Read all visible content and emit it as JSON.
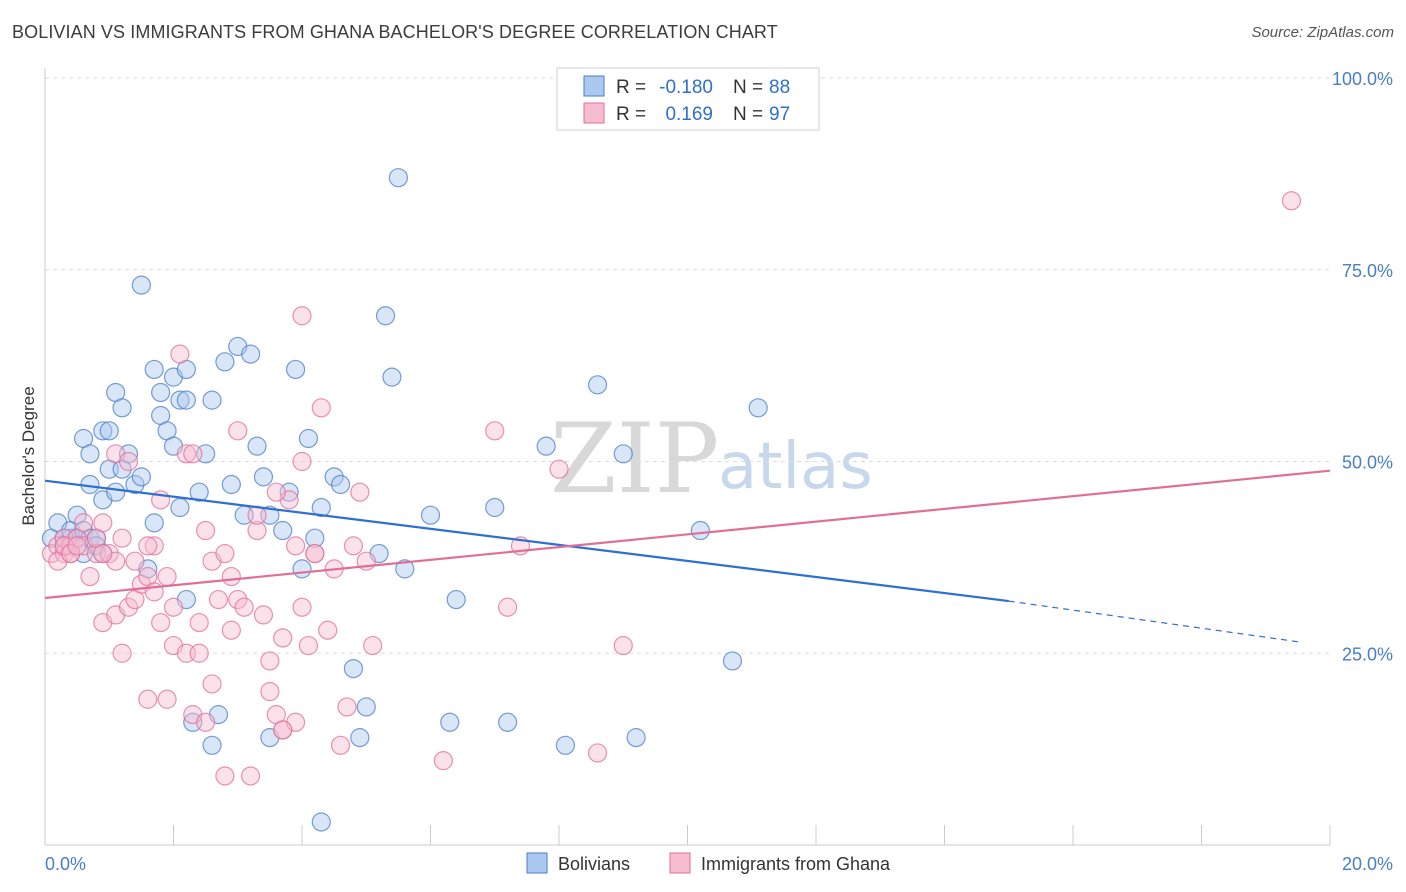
{
  "title": "BOLIVIAN VS IMMIGRANTS FROM GHANA BACHELOR'S DEGREE CORRELATION CHART",
  "source": "Source: ZipAtlas.com",
  "watermark": {
    "zip": "ZIP",
    "atlas": "atlas"
  },
  "legend": {
    "rows": [
      {
        "r_label": "R =",
        "r_value": "-0.180",
        "n_label": "N =",
        "n_value": "88",
        "color": "#4a7ec6"
      },
      {
        "r_label": "R =",
        "r_value": "0.169",
        "n_label": "N =",
        "n_value": "97",
        "color": "#e06f98"
      }
    ]
  },
  "chart_data": {
    "type": "scatter",
    "title": "BOLIVIAN VS IMMIGRANTS FROM GHANA BACHELOR'S DEGREE CORRELATION CHART",
    "xlabel": "",
    "ylabel": "Bachelor's Degree",
    "xlim": [
      0,
      20
    ],
    "ylim": [
      0,
      100
    ],
    "x_ticks": [
      "0.0%",
      "20.0%"
    ],
    "y_ticks": [
      "25.0%",
      "50.0%",
      "75.0%",
      "100.0%"
    ],
    "y_tick_values": [
      25,
      50,
      75,
      100
    ],
    "grid": true,
    "legend_position": "top-center",
    "series": [
      {
        "name": "Bolivians",
        "color": "#4a7ec6",
        "fill": "#aac8f0",
        "trend": {
          "x0": 0,
          "y0": 47.5,
          "x1": 15,
          "y1": 31.8,
          "dash_to_x": 19.5,
          "dash_to_y": 26.5
        },
        "points": [
          [
            0.1,
            40
          ],
          [
            0.2,
            42
          ],
          [
            0.3,
            40
          ],
          [
            0.3,
            39
          ],
          [
            0.4,
            40
          ],
          [
            0.4,
            41
          ],
          [
            0.5,
            40
          ],
          [
            0.5,
            43
          ],
          [
            0.6,
            41
          ],
          [
            0.6,
            38
          ],
          [
            0.7,
            40
          ],
          [
            0.6,
            53
          ],
          [
            0.7,
            51
          ],
          [
            0.7,
            47
          ],
          [
            0.8,
            40
          ],
          [
            0.8,
            39
          ],
          [
            0.9,
            38
          ],
          [
            0.9,
            54
          ],
          [
            1.0,
            54
          ],
          [
            0.9,
            45
          ],
          [
            1.0,
            49
          ],
          [
            1.1,
            59
          ],
          [
            1.2,
            57
          ],
          [
            1.1,
            46
          ],
          [
            1.2,
            49
          ],
          [
            1.3,
            51
          ],
          [
            1.4,
            47
          ],
          [
            1.5,
            48
          ],
          [
            1.6,
            36
          ],
          [
            1.7,
            42
          ],
          [
            1.8,
            56
          ],
          [
            1.9,
            54
          ],
          [
            2.0,
            52
          ],
          [
            2.1,
            44
          ],
          [
            1.5,
            73
          ],
          [
            1.7,
            62
          ],
          [
            1.8,
            59
          ],
          [
            2.0,
            61
          ],
          [
            2.1,
            58
          ],
          [
            2.2,
            62
          ],
          [
            2.2,
            58
          ],
          [
            2.4,
            46
          ],
          [
            2.5,
            51
          ],
          [
            2.6,
            58
          ],
          [
            2.8,
            63
          ],
          [
            2.9,
            47
          ],
          [
            3.0,
            65
          ],
          [
            3.1,
            43
          ],
          [
            3.2,
            64
          ],
          [
            3.3,
            52
          ],
          [
            3.4,
            48
          ],
          [
            3.5,
            43
          ],
          [
            3.7,
            41
          ],
          [
            3.8,
            46
          ],
          [
            3.9,
            62
          ],
          [
            4.0,
            36
          ],
          [
            4.1,
            53
          ],
          [
            4.2,
            40
          ],
          [
            4.3,
            44
          ],
          [
            4.5,
            48
          ],
          [
            4.6,
            47
          ],
          [
            4.8,
            23
          ],
          [
            5.0,
            18
          ],
          [
            5.2,
            38
          ],
          [
            5.3,
            69
          ],
          [
            5.4,
            61
          ],
          [
            5.5,
            87
          ],
          [
            5.6,
            36
          ],
          [
            6.0,
            43
          ],
          [
            6.4,
            32
          ],
          [
            6.3,
            16
          ],
          [
            7.0,
            44
          ],
          [
            7.2,
            16
          ],
          [
            7.8,
            52
          ],
          [
            8.1,
            13
          ],
          [
            8.6,
            60
          ],
          [
            9.0,
            51
          ],
          [
            9.2,
            14
          ],
          [
            10.2,
            41
          ],
          [
            10.7,
            24
          ],
          [
            11.1,
            57
          ],
          [
            2.2,
            32
          ],
          [
            2.3,
            16
          ],
          [
            2.6,
            13
          ],
          [
            2.7,
            17
          ],
          [
            3.5,
            14
          ],
          [
            4.3,
            3
          ],
          [
            4.9,
            14
          ]
        ]
      },
      {
        "name": "Immigrants from Ghana",
        "color": "#e06f98",
        "fill": "#f6bcd0",
        "trend": {
          "x0": 0,
          "y0": 32.2,
          "x1": 20,
          "y1": 48.8
        },
        "points": [
          [
            0.1,
            38
          ],
          [
            0.2,
            39
          ],
          [
            0.3,
            40
          ],
          [
            0.3,
            38
          ],
          [
            0.4,
            39
          ],
          [
            0.4,
            38
          ],
          [
            0.5,
            40
          ],
          [
            0.6,
            39
          ],
          [
            0.6,
            42
          ],
          [
            0.7,
            35
          ],
          [
            0.8,
            38
          ],
          [
            0.8,
            40
          ],
          [
            0.9,
            42
          ],
          [
            0.9,
            29
          ],
          [
            1.0,
            38
          ],
          [
            1.1,
            30
          ],
          [
            1.1,
            37
          ],
          [
            1.2,
            40
          ],
          [
            1.2,
            25
          ],
          [
            1.3,
            31
          ],
          [
            1.4,
            37
          ],
          [
            1.4,
            32
          ],
          [
            1.5,
            34
          ],
          [
            1.6,
            35
          ],
          [
            1.6,
            19
          ],
          [
            1.7,
            39
          ],
          [
            1.7,
            33
          ],
          [
            1.8,
            29
          ],
          [
            1.8,
            45
          ],
          [
            1.9,
            19
          ],
          [
            2.0,
            31
          ],
          [
            2.0,
            26
          ],
          [
            2.1,
            64
          ],
          [
            2.2,
            51
          ],
          [
            2.2,
            25
          ],
          [
            2.3,
            17
          ],
          [
            2.4,
            29
          ],
          [
            2.4,
            25
          ],
          [
            2.5,
            41
          ],
          [
            2.5,
            16
          ],
          [
            2.6,
            21
          ],
          [
            2.6,
            37
          ],
          [
            2.7,
            32
          ],
          [
            2.8,
            9
          ],
          [
            2.9,
            35
          ],
          [
            3.0,
            54
          ],
          [
            3.0,
            32
          ],
          [
            3.1,
            31
          ],
          [
            3.2,
            9
          ],
          [
            3.3,
            41
          ],
          [
            3.4,
            30
          ],
          [
            3.5,
            24
          ],
          [
            3.5,
            20
          ],
          [
            3.6,
            17
          ],
          [
            3.7,
            15
          ],
          [
            3.7,
            27
          ],
          [
            3.8,
            45
          ],
          [
            3.9,
            39
          ],
          [
            3.9,
            16
          ],
          [
            4.0,
            31
          ],
          [
            4.0,
            69
          ],
          [
            4.1,
            26
          ],
          [
            4.2,
            38
          ],
          [
            4.3,
            57
          ],
          [
            4.4,
            28
          ],
          [
            4.5,
            36
          ],
          [
            4.6,
            13
          ],
          [
            4.7,
            18
          ],
          [
            4.8,
            39
          ],
          [
            4.9,
            46
          ],
          [
            5.0,
            37
          ],
          [
            5.1,
            26
          ],
          [
            6.2,
            11
          ],
          [
            7.0,
            54
          ],
          [
            7.2,
            31
          ],
          [
            7.4,
            39
          ],
          [
            8.0,
            49
          ],
          [
            8.6,
            12
          ],
          [
            9.0,
            26
          ],
          [
            19.4,
            84
          ],
          [
            1.1,
            51
          ],
          [
            1.3,
            50
          ],
          [
            1.6,
            39
          ],
          [
            1.9,
            35
          ],
          [
            2.3,
            51
          ],
          [
            2.8,
            38
          ],
          [
            2.9,
            28
          ],
          [
            3.3,
            43
          ],
          [
            3.6,
            46
          ],
          [
            3.7,
            15
          ],
          [
            4.0,
            50
          ],
          [
            4.2,
            38
          ],
          [
            0.2,
            37
          ],
          [
            0.3,
            39
          ],
          [
            0.4,
            38
          ],
          [
            0.5,
            39
          ],
          [
            0.9,
            38
          ]
        ]
      }
    ]
  },
  "bottom_legend": [
    {
      "label": "Bolivians",
      "color": "#aac8f0",
      "stroke": "#4a7ec6"
    },
    {
      "label": "Immigrants from Ghana",
      "color": "#f6bcd0",
      "stroke": "#e06f98"
    }
  ]
}
